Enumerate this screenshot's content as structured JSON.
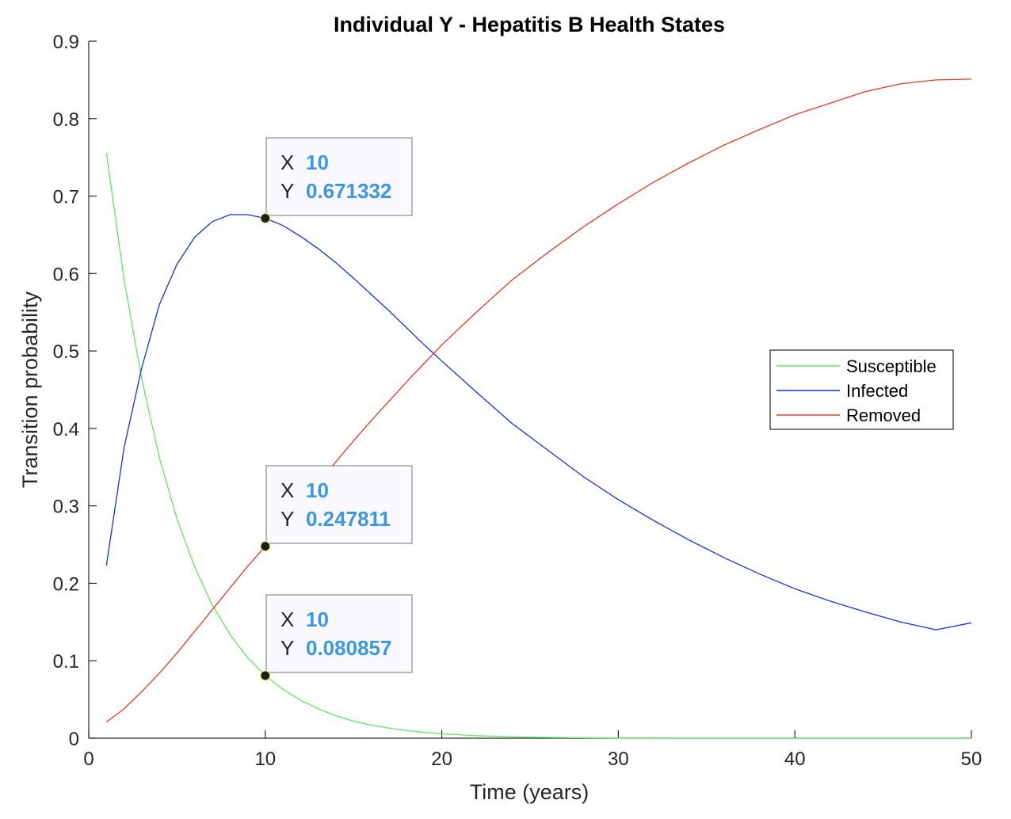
{
  "chart_data": {
    "type": "line",
    "title": "Individual Y - Hepatitis B Health States",
    "xlabel": "Time (years)",
    "ylabel": "Transition probability",
    "xlim": [
      0,
      50
    ],
    "ylim": [
      0,
      0.9
    ],
    "xticks": [
      "0",
      "10",
      "20",
      "30",
      "40",
      "50"
    ],
    "yticks": [
      "0",
      "0.1",
      "0.2",
      "0.3",
      "0.4",
      "0.5",
      "0.6",
      "0.7",
      "0.8",
      "0.9"
    ],
    "grid": false,
    "legend_position": "right",
    "x": [
      1,
      2,
      3,
      4,
      5,
      6,
      7,
      8,
      9,
      10,
      11,
      12,
      13,
      14,
      15,
      16,
      17,
      18,
      19,
      20,
      22,
      24,
      26,
      28,
      30,
      32,
      34,
      36,
      38,
      40,
      42,
      44,
      46,
      48,
      50
    ],
    "series": [
      {
        "name": "Susceptible",
        "color": "#5fe85f",
        "values": [
          0.756,
          0.592,
          0.464,
          0.362,
          0.283,
          0.221,
          0.172,
          0.134,
          0.104,
          0.0809,
          0.063,
          0.049,
          0.038,
          0.029,
          0.022,
          0.017,
          0.013,
          0.01,
          0.0075,
          0.0055,
          0.0032,
          0.0018,
          0.001,
          0.0005,
          0.0002,
          0.0001,
          0,
          0,
          0,
          0,
          0,
          0,
          0,
          0,
          0
        ]
      },
      {
        "name": "Infected",
        "color": "#1430e0",
        "values": [
          0.223,
          0.375,
          0.478,
          0.56,
          0.612,
          0.647,
          0.667,
          0.676,
          0.676,
          0.6713,
          0.662,
          0.648,
          0.632,
          0.614,
          0.594,
          0.573,
          0.552,
          0.53,
          0.508,
          0.487,
          0.446,
          0.406,
          0.372,
          0.338,
          0.308,
          0.281,
          0.256,
          0.233,
          0.212,
          0.193,
          0.177,
          0.163,
          0.15,
          0.14,
          0.149
        ]
      },
      {
        "name": "Removed",
        "color": "#e03b2a",
        "values": [
          0.021,
          0.038,
          0.06,
          0.084,
          0.11,
          0.138,
          0.166,
          0.194,
          0.222,
          0.2478,
          0.276,
          0.302,
          0.33,
          0.357,
          0.384,
          0.41,
          0.435,
          0.46,
          0.484,
          0.508,
          0.551,
          0.592,
          0.627,
          0.66,
          0.69,
          0.718,
          0.743,
          0.766,
          0.786,
          0.805,
          0.82,
          0.835,
          0.845,
          0.85,
          0.851
        ]
      }
    ],
    "datatips": [
      {
        "x": "10",
        "y": "0.671332",
        "series": "Infected",
        "yval": 0.671332
      },
      {
        "x": "10",
        "y": "0.247811",
        "series": "Removed",
        "yval": 0.247811
      },
      {
        "x": "10",
        "y": "0.080857",
        "series": "Susceptible",
        "yval": 0.080857
      }
    ],
    "datatip_labels": {
      "x": "X",
      "y": "Y"
    },
    "datatip_value_color": "#3c96e6"
  }
}
